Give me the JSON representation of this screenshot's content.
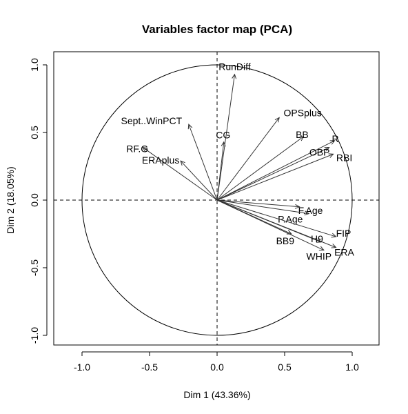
{
  "chart_data": {
    "type": "scatter",
    "subtype": "pca-variables-factor-map",
    "title": "Variables factor map (PCA)",
    "xlabel": "Dim 1 (43.36%)",
    "ylabel": "Dim 2 (18.05%)",
    "xlim": [
      -1.2,
      1.2
    ],
    "ylim": [
      -1.05,
      1.0
    ],
    "xticks": [
      -1.0,
      -0.5,
      0.0,
      0.5,
      1.0
    ],
    "yticks": [
      -1.0,
      -0.5,
      0.0,
      0.5,
      1.0
    ],
    "xtick_labels": [
      "-1.0",
      "-0.5",
      "0.0",
      "0.5",
      "1.0"
    ],
    "ytick_labels": [
      "-1.0",
      "-0.5",
      "0.0",
      "0.5",
      "1.0"
    ],
    "unit_circle": true,
    "reference_lines": true,
    "variables": [
      {
        "name": "RunDiff",
        "x": 0.13,
        "y": 0.93
      },
      {
        "name": "Sept..WinPCT",
        "x": -0.21,
        "y": 0.56
      },
      {
        "name": "CG",
        "x": 0.05,
        "y": 0.43
      },
      {
        "name": "OPSplus",
        "x": 0.46,
        "y": 0.61
      },
      {
        "name": "BB",
        "x": 0.64,
        "y": 0.47
      },
      {
        "name": "R",
        "x": 0.87,
        "y": 0.44
      },
      {
        "name": "OBP",
        "x": 0.83,
        "y": 0.39
      },
      {
        "name": "RBI",
        "x": 0.86,
        "y": 0.34
      },
      {
        "name": "RF.G",
        "x": -0.55,
        "y": 0.39
      },
      {
        "name": "ERAplus",
        "x": -0.27,
        "y": 0.29
      },
      {
        "name": "F.Age",
        "x": 0.61,
        "y": -0.05
      },
      {
        "name": "P.Age",
        "x": 0.68,
        "y": -0.1
      },
      {
        "name": "FIP",
        "x": 0.88,
        "y": -0.27
      },
      {
        "name": "H9",
        "x": 0.77,
        "y": -0.31
      },
      {
        "name": "BB9",
        "x": 0.55,
        "y": -0.25
      },
      {
        "name": "ERA",
        "x": 0.88,
        "y": -0.35
      },
      {
        "name": "WHIP",
        "x": 0.79,
        "y": -0.37
      }
    ]
  }
}
